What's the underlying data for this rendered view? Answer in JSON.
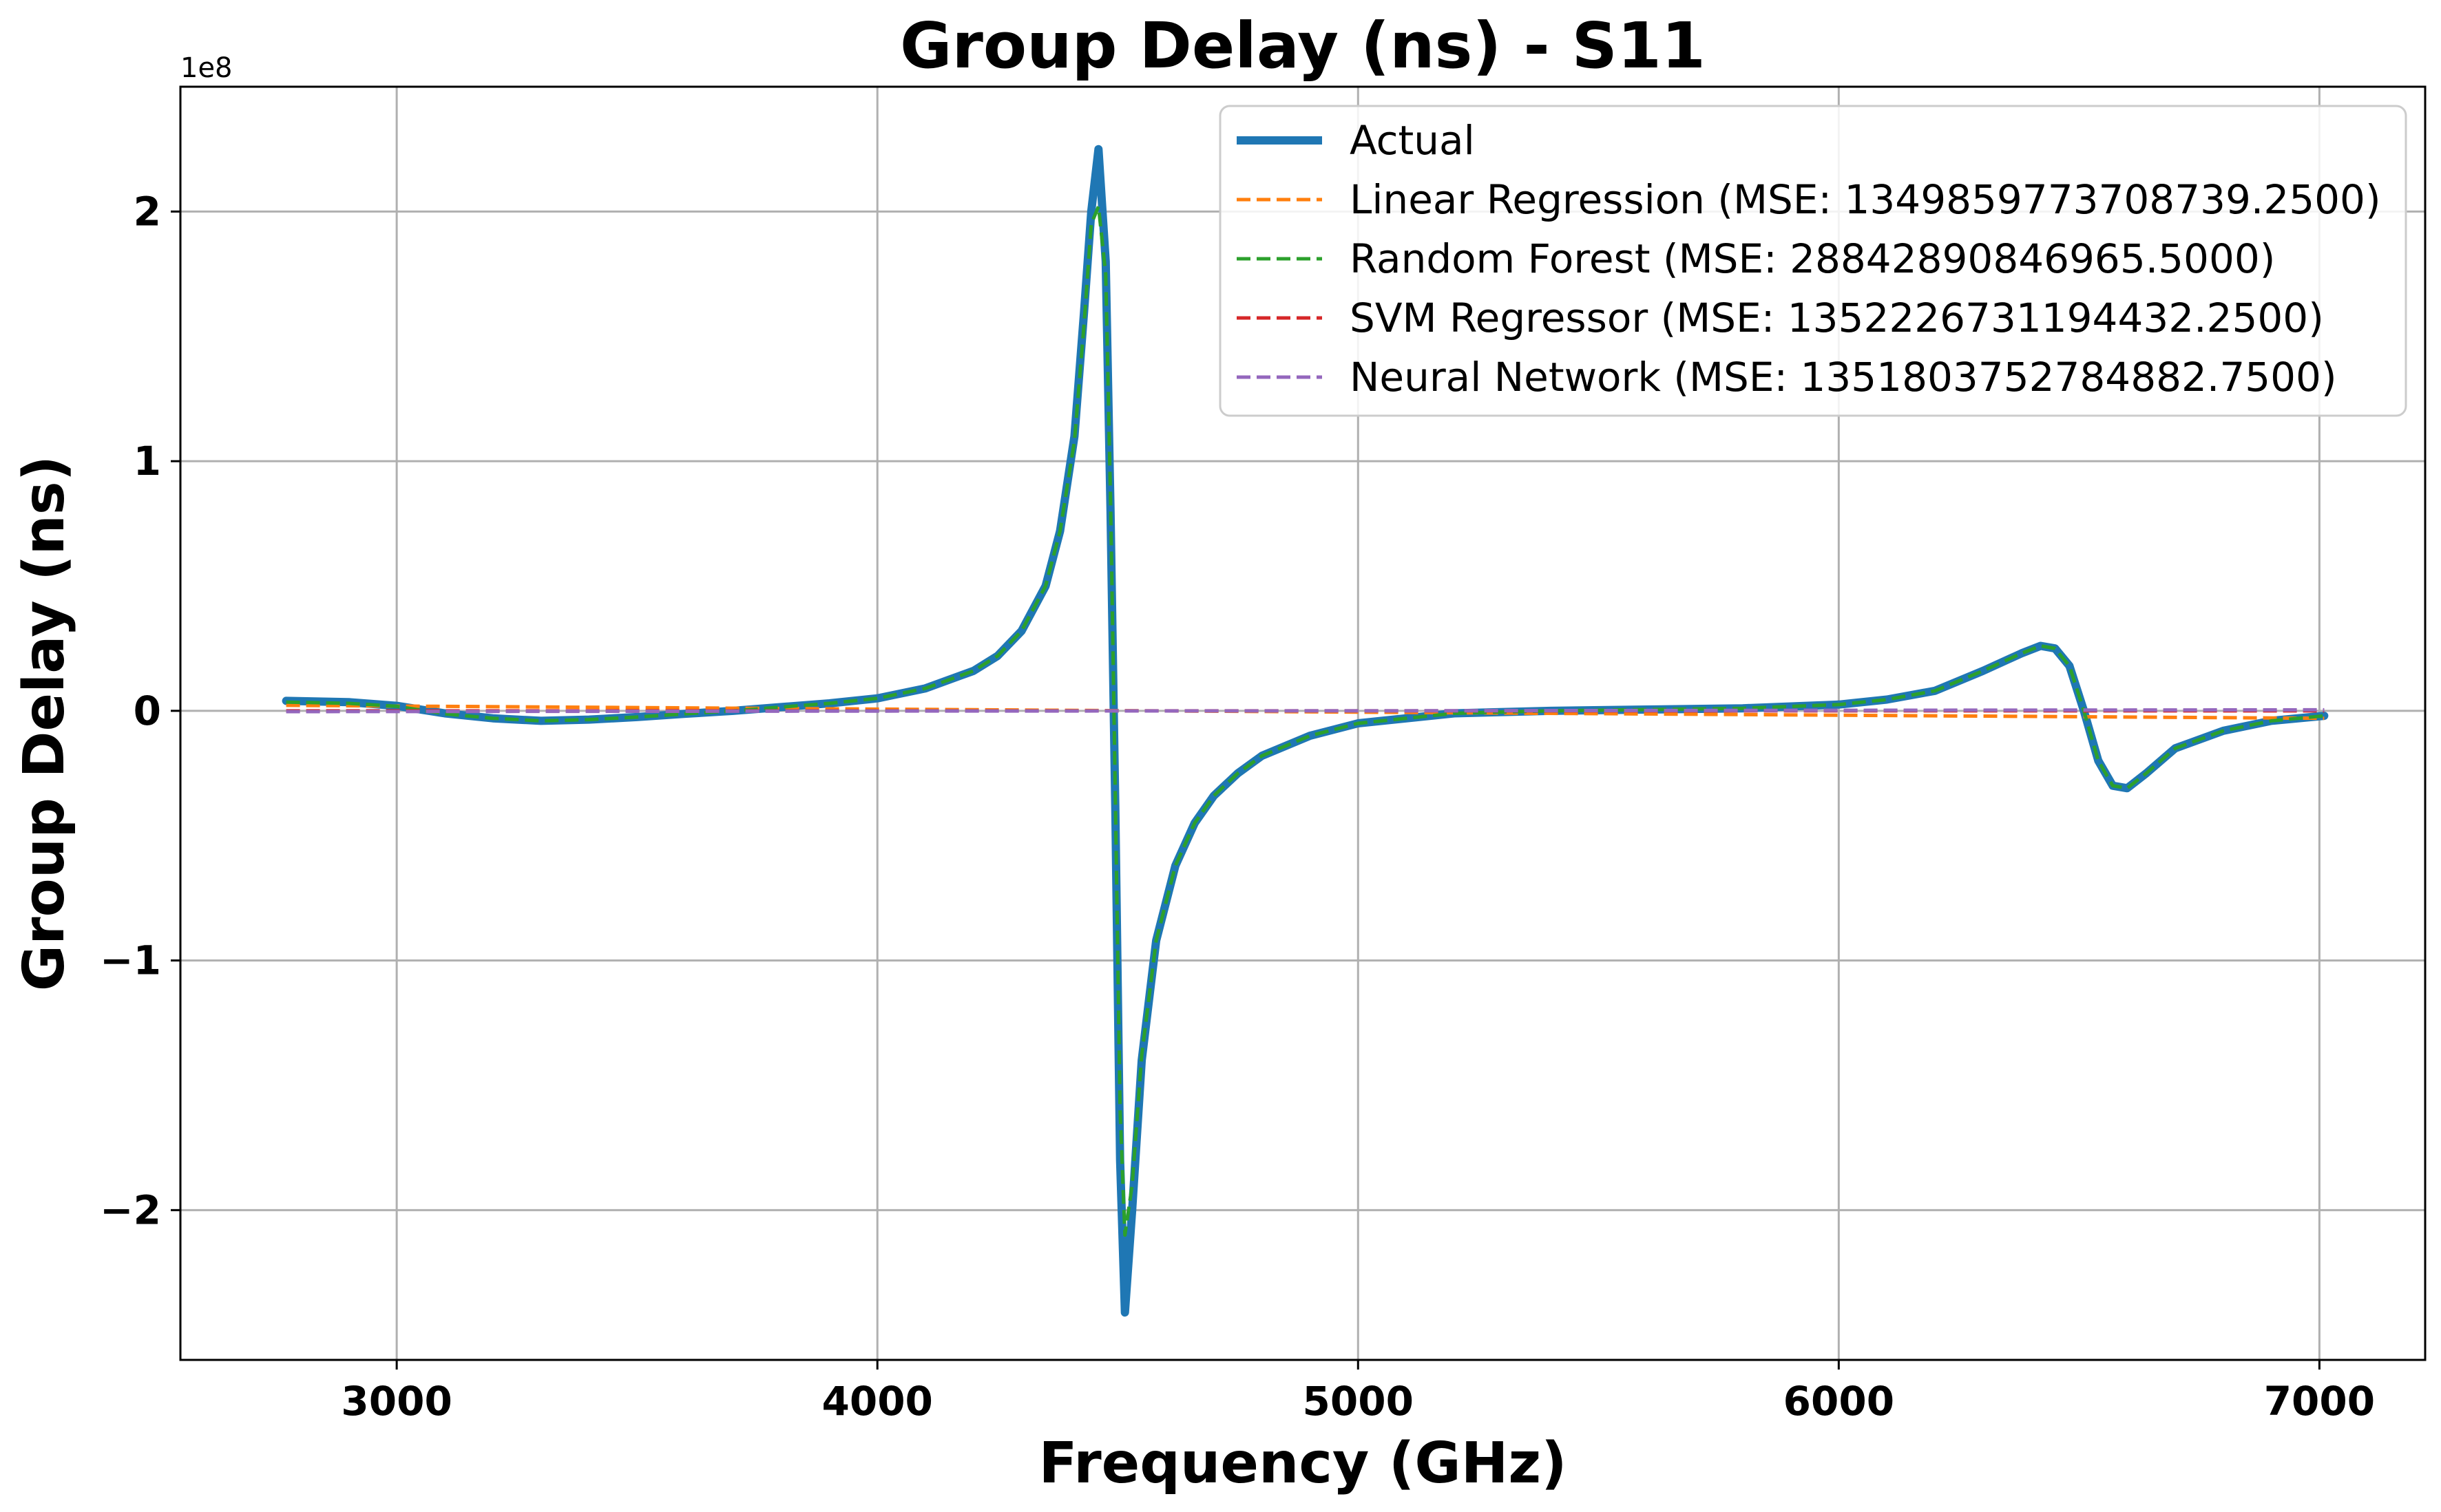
{
  "chart_data": {
    "type": "line",
    "title": "Group Delay (ns) - S11",
    "xlabel": "Frequency (GHz)",
    "ylabel": "Group Delay (ns)",
    "y_scale_label": "1e8",
    "y_scale_factor": 100000000,
    "xlim": [
      2550,
      7220
    ],
    "ylim": [
      -2.6,
      2.5
    ],
    "x_ticks": [
      3000,
      4000,
      5000,
      6000,
      7000
    ],
    "x_tick_labels": [
      "3000",
      "4000",
      "5000",
      "6000",
      "7000"
    ],
    "y_ticks": [
      -2,
      -1,
      0,
      1,
      2
    ],
    "y_tick_labels": [
      "−2",
      "−1",
      "0",
      "1",
      "2"
    ],
    "grid": true,
    "legend_position": "top-right",
    "series": [
      {
        "name": "Actual",
        "color": "#1f77b4",
        "style": "solid",
        "x": [
          2770,
          2900,
          3000,
          3100,
          3200,
          3300,
          3400,
          3500,
          3600,
          3700,
          3800,
          3900,
          4000,
          4100,
          4200,
          4250,
          4300,
          4350,
          4380,
          4410,
          4430,
          4445,
          4460,
          4475,
          4485,
          4495,
          4505,
          4515,
          4530,
          4550,
          4580,
          4620,
          4660,
          4700,
          4750,
          4800,
          4900,
          5000,
          5200,
          5400,
          5600,
          5800,
          6000,
          6100,
          6200,
          6300,
          6380,
          6420,
          6450,
          6480,
          6510,
          6540,
          6570,
          6600,
          6640,
          6700,
          6800,
          6900,
          7010
        ],
        "values": [
          0.04,
          0.035,
          0.02,
          -0.01,
          -0.03,
          -0.04,
          -0.035,
          -0.025,
          -0.012,
          0.0,
          0.015,
          0.03,
          0.05,
          0.09,
          0.16,
          0.22,
          0.32,
          0.5,
          0.72,
          1.1,
          1.6,
          2.0,
          2.25,
          1.8,
          0.8,
          -0.4,
          -1.8,
          -2.41,
          -2.0,
          -1.4,
          -0.92,
          -0.62,
          -0.45,
          -0.34,
          -0.25,
          -0.18,
          -0.1,
          -0.05,
          -0.01,
          0.0,
          0.005,
          0.01,
          0.025,
          0.045,
          0.08,
          0.16,
          0.23,
          0.26,
          0.25,
          0.18,
          0.0,
          -0.2,
          -0.3,
          -0.31,
          -0.25,
          -0.15,
          -0.08,
          -0.04,
          -0.02
        ]
      },
      {
        "name": "Linear Regression (MSE: 1349859773708739.2500)",
        "color": "#ff7f0e",
        "style": "dashed",
        "x": [
          2770,
          7010
        ],
        "values": [
          0.022,
          -0.03
        ]
      },
      {
        "name": "Random Forest (MSE: 28842890846965.5000)",
        "color": "#2ca02c",
        "style": "dashed",
        "x": [
          2770,
          2900,
          3000,
          3100,
          3200,
          3300,
          3400,
          3500,
          3600,
          3700,
          3800,
          3900,
          4000,
          4100,
          4200,
          4250,
          4300,
          4350,
          4380,
          4410,
          4430,
          4445,
          4460,
          4475,
          4485,
          4495,
          4505,
          4515,
          4530,
          4550,
          4580,
          4620,
          4660,
          4700,
          4750,
          4800,
          4900,
          5000,
          5200,
          5400,
          5600,
          5800,
          6000,
          6100,
          6200,
          6300,
          6380,
          6420,
          6450,
          6480,
          6510,
          6540,
          6570,
          6600,
          6640,
          6700,
          6800,
          6900,
          7010
        ],
        "values": [
          0.035,
          0.03,
          0.018,
          -0.012,
          -0.03,
          -0.04,
          -0.035,
          -0.025,
          -0.012,
          0.0,
          0.015,
          0.03,
          0.05,
          0.09,
          0.16,
          0.22,
          0.32,
          0.5,
          0.72,
          1.08,
          1.55,
          1.95,
          2.02,
          1.75,
          0.85,
          -0.35,
          -1.6,
          -2.1,
          -1.9,
          -1.38,
          -0.92,
          -0.62,
          -0.45,
          -0.34,
          -0.25,
          -0.18,
          -0.1,
          -0.05,
          -0.01,
          0.0,
          0.005,
          0.01,
          0.025,
          0.045,
          0.08,
          0.16,
          0.23,
          0.26,
          0.25,
          0.18,
          0.0,
          -0.2,
          -0.3,
          -0.31,
          -0.25,
          -0.15,
          -0.08,
          -0.04,
          -0.02
        ]
      },
      {
        "name": "SVM Regressor (MSE: 1352226731194432.2500)",
        "color": "#d62728",
        "style": "dashed",
        "x": [
          2770,
          7010
        ],
        "values": [
          0.0,
          0.0
        ]
      },
      {
        "name": "Neural Network (MSE: 1351803752784882.7500)",
        "color": "#9467bd",
        "style": "dashed",
        "x": [
          2770,
          4000,
          5000,
          6000,
          7010
        ],
        "values": [
          -0.003,
          -0.001,
          0.0,
          0.002,
          0.004
        ]
      }
    ]
  }
}
